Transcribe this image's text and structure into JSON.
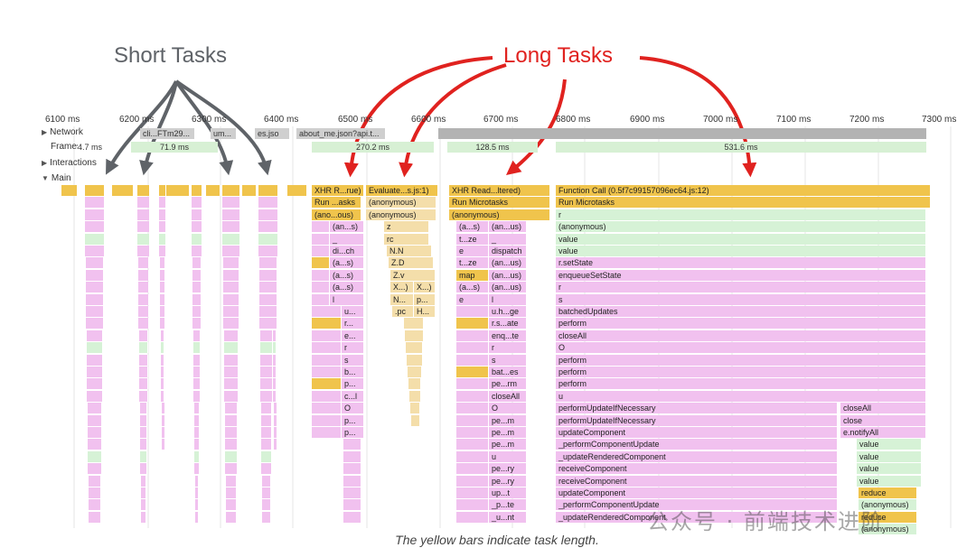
{
  "annotations": {
    "short_tasks": "Short Tasks",
    "long_tasks": "Long Tasks"
  },
  "caption": "The yellow bars indicate task length.",
  "watermark": "公众号 · 前端技术进阶",
  "colors": {
    "task": "#f0c44c",
    "script": "#f1c1ef",
    "microtask": "#d6f2d6",
    "eval": "#f4deaa",
    "long_arrow": "#e0221f",
    "short_arrow": "#5f6368",
    "grid": "#e6e6e6",
    "network": "#cfcfcf"
  },
  "timeline": {
    "ticks": [
      "6100 ms",
      "6200 ms",
      "6300 ms",
      "6400 ms",
      "6500 ms",
      "6600 ms",
      "6700 ms",
      "6800 ms",
      "6900 ms",
      "7000 ms",
      "7100 ms",
      "7200 ms",
      "7300 ms"
    ],
    "tracks": {
      "network": "Network",
      "frames": "Frames",
      "interactions": "Interactions",
      "main": "Main"
    },
    "network_labels": [
      "cli...FTm29...",
      "um...",
      "es.jso",
      "about_me.json?api.t..."
    ],
    "frames": [
      "4.7 ms",
      "71.9 ms",
      "270.2 ms",
      "128.5 ms",
      "531.6 ms"
    ]
  },
  "flame": {
    "task1": [
      "XHR R...rue)",
      "Run ...asks",
      "(ano...ous)",
      "(an...s)",
      "_",
      "di...ch",
      "(a...s)",
      "(a...s)",
      "(a...s)",
      "l",
      "u...",
      "r...",
      "e...",
      "r",
      "s",
      "b...",
      "p...",
      "c...l",
      "O",
      "p...",
      "p..."
    ],
    "task2": [
      "Evaluate...s.js:1)",
      "(anonymous)",
      "(anonymous)",
      "z",
      "rc",
      "N.N",
      "Z.D",
      "Z.v",
      "X...)",
      "X...)",
      "N...",
      "p...",
      ".pc",
      "H..."
    ],
    "task3_left": [
      "XHR Read...ltered)",
      "Run Microtasks",
      "(anonymous)",
      "(a...s)",
      "t...ze",
      "e",
      "t...ze",
      "map",
      "(a...s)",
      "e"
    ],
    "task3_right": [
      "(an...us)",
      "_",
      "dispatch",
      "(an...us)",
      "(an...us)",
      "(an...us)",
      "l",
      "u.h...ge",
      "r.s...ate",
      "enq...te",
      "r",
      "s",
      "bat...es",
      "pe...rm",
      "closeAll",
      "O",
      "pe...m",
      "pe...m",
      "pe...m",
      "u",
      "pe...ry",
      "pe...ry",
      "up...t",
      "_p...te",
      "_u...nt"
    ],
    "task4": [
      "Function Call (0.5f7c99157096ec64.js:12)",
      "Run Microtasks",
      "r",
      "(anonymous)",
      "value",
      "value",
      "r.setState",
      "enqueueSetState",
      "r",
      "s",
      "batchedUpdates",
      "perform",
      "closeAll",
      "O",
      "perform",
      "perform",
      "perform",
      "u",
      "performUpdateIfNecessary",
      "performUpdateIfNecessary",
      "updateComponent",
      "_performComponentUpdate",
      "_updateRenderedComponent",
      "receiveComponent",
      "receiveComponent",
      "updateComponent",
      "_performComponentUpdate",
      "_updateRenderedComponent"
    ],
    "task4_sub": [
      "closeAll",
      "close",
      "e.notifyAll",
      "value",
      "value",
      "value",
      "value",
      "reduce",
      "(anonymous)",
      "reduce",
      "(anonymous)"
    ]
  }
}
